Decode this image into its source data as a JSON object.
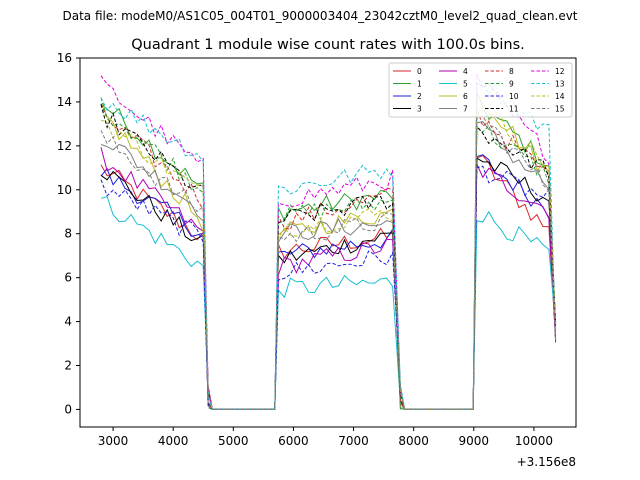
{
  "suptitle": "Data file: modeM0/AS1C05_004T01_9000003404_23042cztM0_level2_quad_clean.evt",
  "chart_data": {
    "type": "line",
    "title": "Quadrant 1 module wise count rates with 100.0s bins.",
    "xlabel": "",
    "ylabel": "",
    "x_offset_label": "+3.156e8",
    "xlim": [
      2450,
      10700
    ],
    "ylim": [
      -0.8,
      16.0
    ],
    "x_ticks": [
      3000,
      4000,
      5000,
      6000,
      7000,
      8000,
      9000,
      10000
    ],
    "x_tick_labels": [
      "3000",
      "4000",
      "5000",
      "6000",
      "7000",
      "8000",
      "9000",
      "10000"
    ],
    "y_ticks": [
      0,
      2,
      4,
      6,
      8,
      10,
      12,
      14,
      16
    ],
    "y_tick_labels": [
      "0",
      "2",
      "4",
      "6",
      "8",
      "10",
      "12",
      "14",
      "16"
    ],
    "legend_position": "upper right",
    "segments": [
      {
        "x_start": 2800,
        "x_end": 4500,
        "trend": "decreasing"
      },
      {
        "x_start": 5750,
        "x_end": 7700,
        "trend": "flat"
      },
      {
        "x_start": 9050,
        "x_end": 10300,
        "trend": "decreasing"
      }
    ],
    "gap_value": 0,
    "series": [
      {
        "name": "0",
        "color": "#d62728",
        "dash": "solid",
        "seg1": [
          11.0,
          7.8
        ],
        "seg2": [
          7.2,
          7.9
        ],
        "seg3": [
          11.5,
          8.0
        ]
      },
      {
        "name": "1",
        "color": "#2ca02c",
        "dash": "solid",
        "seg1": [
          14.0,
          10.0
        ],
        "seg2": [
          9.0,
          9.8
        ],
        "seg3": [
          14.0,
          11.0
        ]
      },
      {
        "name": "2",
        "color": "#1f1fe0",
        "dash": "solid",
        "seg1": [
          10.8,
          8.0
        ],
        "seg2": [
          7.0,
          7.8
        ],
        "seg3": [
          11.5,
          9.0
        ]
      },
      {
        "name": "3",
        "color": "#000000",
        "dash": "solid",
        "seg1": [
          11.0,
          7.5
        ],
        "seg2": [
          6.8,
          8.0
        ],
        "seg3": [
          11.5,
          9.5
        ]
      },
      {
        "name": "4",
        "color": "#b000b0",
        "dash": "solid",
        "seg1": [
          11.5,
          8.0
        ],
        "seg2": [
          6.5,
          7.5
        ],
        "seg3": [
          11.0,
          9.0
        ]
      },
      {
        "name": "5",
        "color": "#17becf",
        "dash": "solid",
        "seg1": [
          9.5,
          6.5
        ],
        "seg2": [
          5.5,
          5.8
        ],
        "seg3": [
          9.0,
          7.0
        ]
      },
      {
        "name": "6",
        "color": "#bcbd22",
        "dash": "solid",
        "seg1": [
          13.5,
          8.5
        ],
        "seg2": [
          8.0,
          9.0
        ],
        "seg3": [
          14.5,
          10.5
        ]
      },
      {
        "name": "7",
        "color": "#7f7f7f",
        "dash": "solid",
        "seg1": [
          12.5,
          9.0
        ],
        "seg2": [
          8.0,
          8.5
        ],
        "seg3": [
          13.0,
          10.0
        ]
      },
      {
        "name": "8",
        "color": "#d62728",
        "dash": "dashed",
        "seg1": [
          13.5,
          9.5
        ],
        "seg2": [
          8.5,
          9.8
        ],
        "seg3": [
          13.5,
          10.5
        ]
      },
      {
        "name": "9",
        "color": "#2ca02c",
        "dash": "dashed",
        "seg1": [
          13.8,
          10.0
        ],
        "seg2": [
          8.8,
          9.5
        ],
        "seg3": [
          13.0,
          10.5
        ]
      },
      {
        "name": "10",
        "color": "#1f1fe0",
        "dash": "dashed",
        "seg1": [
          10.2,
          7.8
        ],
        "seg2": [
          6.2,
          7.0
        ],
        "seg3": [
          11.0,
          9.5
        ]
      },
      {
        "name": "11",
        "color": "#000000",
        "dash": "dashed",
        "seg1": [
          13.5,
          9.8
        ],
        "seg2": [
          8.6,
          9.6
        ],
        "seg3": [
          12.8,
          10.8
        ]
      },
      {
        "name": "12",
        "color": "#dd00dd",
        "dash": "dashed",
        "seg1": [
          14.8,
          11.0
        ],
        "seg2": [
          9.5,
          10.5
        ],
        "seg3": [
          15.0,
          11.5
        ]
      },
      {
        "name": "13",
        "color": "#17becf",
        "dash": "dashed",
        "seg1": [
          14.2,
          11.5
        ],
        "seg2": [
          10.0,
          11.0
        ],
        "seg3": [
          15.2,
          12.5
        ]
      },
      {
        "name": "14",
        "color": "#bcbd22",
        "dash": "dashed",
        "seg1": [
          13.2,
          9.8
        ],
        "seg2": [
          8.2,
          9.0
        ],
        "seg3": [
          14.0,
          11.0
        ]
      },
      {
        "name": "15",
        "color": "#7f7f7f",
        "dash": "dashed",
        "seg1": [
          12.4,
          9.0
        ],
        "seg2": [
          7.8,
          8.6
        ],
        "seg3": [
          13.5,
          10.0
        ]
      }
    ]
  }
}
